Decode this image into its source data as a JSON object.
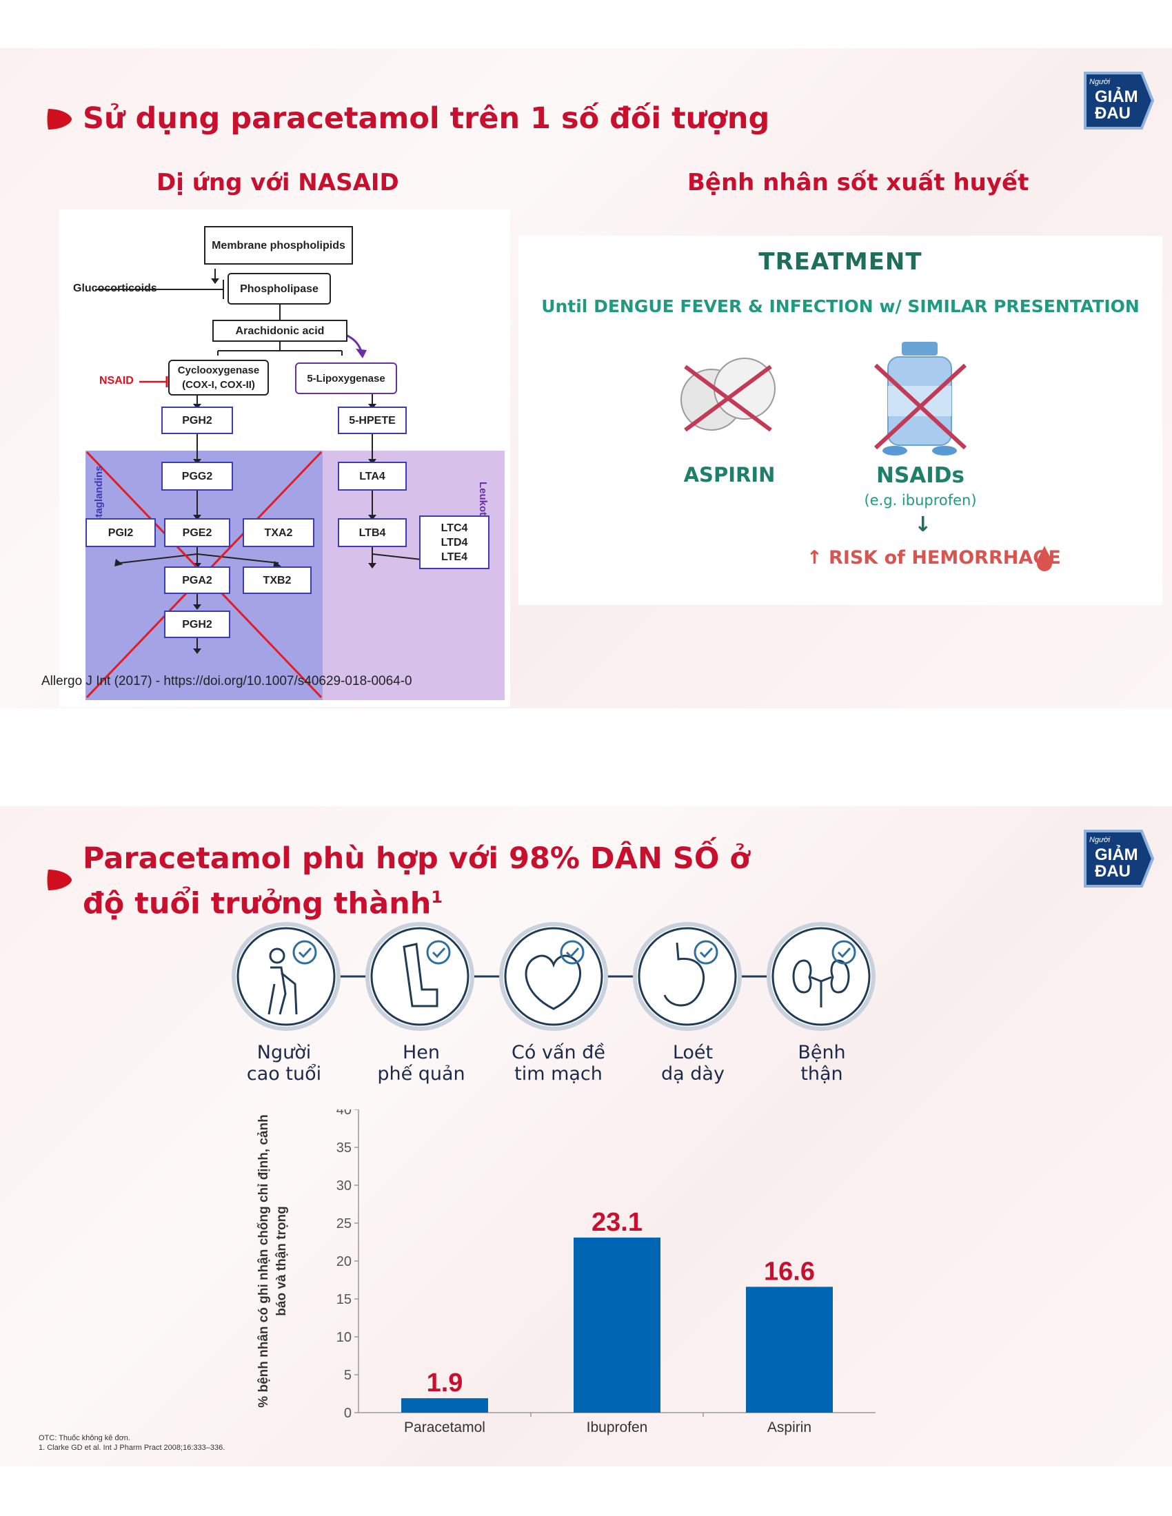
{
  "slide1": {
    "title": "Sử dụng paracetamol trên 1 số đối tượng",
    "logo": {
      "small": "Người",
      "line1": "GIẢM",
      "line2": "ĐAU"
    },
    "left_heading": "Dị ứng với NASAID",
    "right_heading": "Bệnh nhân sốt xuất huyết",
    "pathway": {
      "membrane": "Membrane phospholipids",
      "glucocorticoids": "Glucocorticoids",
      "phospholipase": "Phospholipase",
      "arachidonic": "Arachidonic acid",
      "nsaid": "NSAID",
      "cox": "Cyclooxygenase (COX-I, COX-II)",
      "lox": "5-Lipoxygenase",
      "prostaglandins": "Prostaglandins",
      "leukotrienes": "Leukotrienes",
      "pgh2": "PGH2",
      "pgg2": "PGG2",
      "pgi2": "PGI2",
      "pge2": "PGE2",
      "txa2": "TXA2",
      "pga2": "PGA2",
      "txb2": "TXB2",
      "pgh2b": "PGH2",
      "hpete": "5-HPETE",
      "lta4": "LTA4",
      "ltb4": "LTB4",
      "ltc4": "LTC4",
      "ltd4": "LTD4",
      "lte4": "LTE4"
    },
    "treatment": {
      "title": "TREATMENT",
      "subtitle": "Until DENGUE FEVER & INFECTION w/ SIMILAR PRESENTATION",
      "aspirin": "ASPIRIN",
      "nsaids": "NSAIDs",
      "example": "(e.g. ibuprofen)",
      "risk": "↑ RISK of HEMORRHAGE"
    },
    "source": "Allergo J Int (2017) - https://doi.org/10.1007/s40629-018-0064-0"
  },
  "slide2": {
    "title_line1": "Paracetamol phù hợp với 98% DÂN SỐ ở",
    "title_line2": "độ tuổi trưởng thành",
    "title_sup": "1",
    "logo": {
      "small": "Người",
      "line1": "GIẢM",
      "line2": "ĐAU"
    },
    "groups": [
      {
        "line1": "Người",
        "line2": "cao tuổi",
        "icon": "elderly-person-icon"
      },
      {
        "line1": "Hen",
        "line2": "phế quản",
        "icon": "inhaler-icon"
      },
      {
        "line1": "Có vấn đề",
        "line2": "tim mạch",
        "icon": "heart-icon"
      },
      {
        "line1": "Loét",
        "line2": "dạ dày",
        "icon": "stomach-icon"
      },
      {
        "line1": "Bệnh",
        "line2": "thận",
        "icon": "kidney-icon"
      }
    ],
    "footnotes": {
      "line1": "OTC: Thuốc không kê đơn.",
      "line2": "1. Clarke GD et al. Int J Pharm Pract 2008;16:333–336."
    },
    "colors": {
      "bar": "#0066b3",
      "value_label": "#c8102e",
      "icon_ring": "#1f3b57",
      "check": "#2f6f9f"
    }
  },
  "chart_data": {
    "type": "bar",
    "categories": [
      "Paracetamol",
      "Ibuprofen",
      "Aspirin"
    ],
    "values": [
      1.9,
      23.1,
      16.6
    ],
    "value_labels": [
      "1.9",
      "23.1",
      "16.6"
    ],
    "ylabel_line1": "% bệnh nhân có ghi nhận chống chỉ định, cảnh",
    "ylabel_line2": "báo và thận trọng",
    "ylim": [
      0,
      40
    ],
    "yticks": [
      0,
      5,
      10,
      15,
      20,
      25,
      30,
      35,
      40
    ],
    "grid": false
  }
}
